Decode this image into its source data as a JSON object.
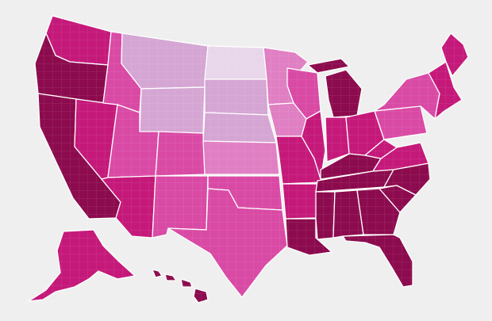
{
  "map": {
    "background": "#efefef",
    "border_color": "#ffffff",
    "scale_colors": {
      "very_light": "#e8d6ea",
      "light": "#d5a6d4",
      "medium_light": "#e07fc3",
      "medium": "#d94aa5",
      "dark": "#c5197a",
      "very_dark": "#8c0b4e"
    },
    "regions": [
      {
        "name": "washington",
        "level": "dark"
      },
      {
        "name": "oregon",
        "level": "very_dark"
      },
      {
        "name": "california",
        "level": "very_dark"
      },
      {
        "name": "nevada",
        "level": "dark"
      },
      {
        "name": "idaho",
        "level": "medium"
      },
      {
        "name": "montana",
        "level": "light"
      },
      {
        "name": "wyoming",
        "level": "light"
      },
      {
        "name": "utah",
        "level": "medium"
      },
      {
        "name": "arizona",
        "level": "dark"
      },
      {
        "name": "colorado",
        "level": "medium"
      },
      {
        "name": "new-mexico",
        "level": "medium"
      },
      {
        "name": "north-dakota",
        "level": "very_light"
      },
      {
        "name": "south-dakota",
        "level": "light"
      },
      {
        "name": "nebraska",
        "level": "light"
      },
      {
        "name": "kansas",
        "level": "medium_light"
      },
      {
        "name": "oklahoma",
        "level": "medium"
      },
      {
        "name": "texas",
        "level": "medium"
      },
      {
        "name": "minnesota",
        "level": "medium_light"
      },
      {
        "name": "iowa",
        "level": "medium_light"
      },
      {
        "name": "missouri",
        "level": "dark"
      },
      {
        "name": "arkansas",
        "level": "dark"
      },
      {
        "name": "louisiana",
        "level": "very_dark"
      },
      {
        "name": "wisconsin",
        "level": "medium"
      },
      {
        "name": "illinois",
        "level": "dark"
      },
      {
        "name": "michigan",
        "level": "very_dark"
      },
      {
        "name": "indiana",
        "level": "dark"
      },
      {
        "name": "ohio",
        "level": "dark"
      },
      {
        "name": "kentucky",
        "level": "very_dark"
      },
      {
        "name": "tennessee",
        "level": "very_dark"
      },
      {
        "name": "mississippi",
        "level": "very_dark"
      },
      {
        "name": "alabama",
        "level": "very_dark"
      },
      {
        "name": "georgia",
        "level": "very_dark"
      },
      {
        "name": "florida",
        "level": "very_dark"
      },
      {
        "name": "south-carolina",
        "level": "very_dark"
      },
      {
        "name": "north-carolina",
        "level": "very_dark"
      },
      {
        "name": "virginia",
        "level": "dark"
      },
      {
        "name": "west-virginia",
        "level": "dark"
      },
      {
        "name": "pennsylvania",
        "level": "medium"
      },
      {
        "name": "new-york",
        "level": "medium"
      },
      {
        "name": "new-england",
        "level": "dark"
      },
      {
        "name": "maine",
        "level": "dark"
      },
      {
        "name": "alaska",
        "level": "dark"
      },
      {
        "name": "hawaii",
        "level": "very_dark"
      }
    ]
  }
}
